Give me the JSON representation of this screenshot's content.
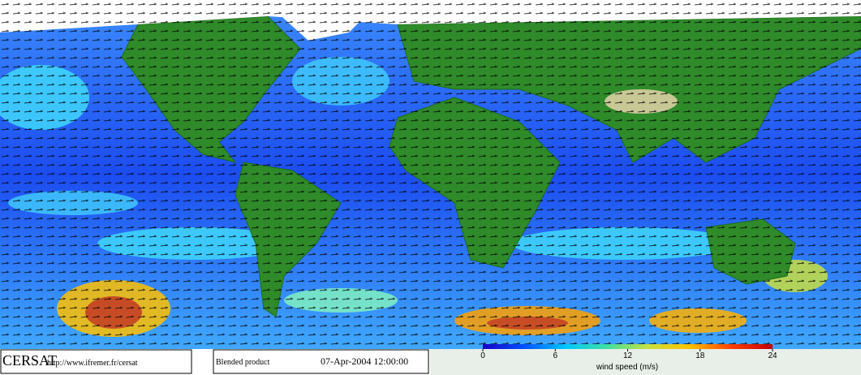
{
  "footer": {
    "brand": "CERSAT",
    "url": "http://www.ifremer.fr/cersat",
    "product": "Blended product",
    "date": "07-Apr-2004 12:00:00"
  },
  "colorbar": {
    "lim": [
      0,
      24
    ],
    "ticks": [
      0,
      6,
      12,
      18,
      24
    ],
    "label": "wind speed (m/s)",
    "colors": [
      "#1a00c8",
      "#0050ff",
      "#00c8ff",
      "#40e0a0",
      "#c8e040",
      "#ffc000",
      "#ff4000",
      "#c00000"
    ]
  }
}
